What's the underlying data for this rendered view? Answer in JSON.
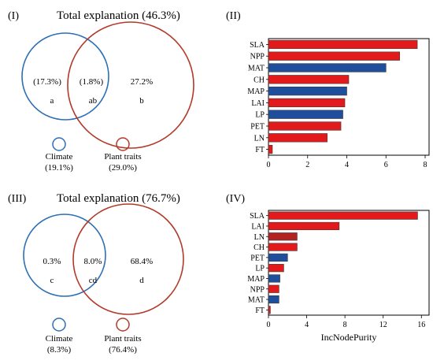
{
  "venn_panels": [
    {
      "label": "(I)",
      "title": "Total explanation (46.3%)",
      "regions": [
        {
          "value": "(17.3%)",
          "letter": "a"
        },
        {
          "value": "(1.8%)",
          "letter": "ab"
        },
        {
          "value": "27.2%",
          "letter": "b"
        }
      ],
      "legend": [
        {
          "name": "Climate",
          "share": "(19.1%)",
          "color": "#2c6fb5"
        },
        {
          "name": "Plant traits",
          "share": "(29.0%)",
          "color": "#b23a2a"
        }
      ]
    },
    {
      "label": "(III)",
      "title": "Total explanation (76.7%)",
      "regions": [
        {
          "value": "0.3%",
          "letter": "c"
        },
        {
          "value": "8.0%",
          "letter": "cd"
        },
        {
          "value": "68.4%",
          "letter": "d"
        }
      ],
      "legend": [
        {
          "name": "Climate",
          "share": "(8.3%)",
          "color": "#2c6fb5"
        },
        {
          "name": "Plant traits",
          "share": "(76.4%)",
          "color": "#b23a2a"
        }
      ]
    }
  ],
  "chart_data": [
    {
      "type": "bar",
      "orientation": "horizontal",
      "panel_label": "(II)",
      "categories": [
        "SLA",
        "NPP",
        "MAT",
        "CH",
        "MAP",
        "LAI",
        "LP",
        "PET",
        "LN",
        "FT"
      ],
      "values": [
        7.6,
        6.7,
        6.0,
        4.1,
        4.0,
        3.9,
        3.8,
        3.7,
        3.0,
        0.2
      ],
      "colors": [
        "#e31a1c",
        "#e31a1c",
        "#1f4e9c",
        "#e31a1c",
        "#1f4e9c",
        "#e31a1c",
        "#1f4e9c",
        "#e31a1c",
        "#e31a1c",
        "#e31a1c"
      ],
      "xticks": [
        0,
        2,
        4,
        6,
        8
      ],
      "xlim": [
        0,
        8.2
      ],
      "xlabel": "",
      "grid": false
    },
    {
      "type": "bar",
      "orientation": "horizontal",
      "panel_label": "(IV)",
      "categories": [
        "SLA",
        "LAI",
        "LN",
        "CH",
        "PET",
        "LP",
        "MAP",
        "NPP",
        "MAT",
        "FT"
      ],
      "values": [
        15.6,
        7.4,
        3.0,
        3.0,
        2.0,
        1.6,
        1.2,
        1.1,
        1.1,
        0.2
      ],
      "colors": [
        "#e31a1c",
        "#e31a1c",
        "#b22222",
        "#e31a1c",
        "#1f4e9c",
        "#e31a1c",
        "#1f4e9c",
        "#e31a1c",
        "#1f4e9c",
        "#e31a1c"
      ],
      "xticks": [
        0,
        4,
        8,
        12,
        16
      ],
      "xlim": [
        0,
        16.8
      ],
      "xlabel": "IncNodePurity",
      "grid": false
    }
  ]
}
